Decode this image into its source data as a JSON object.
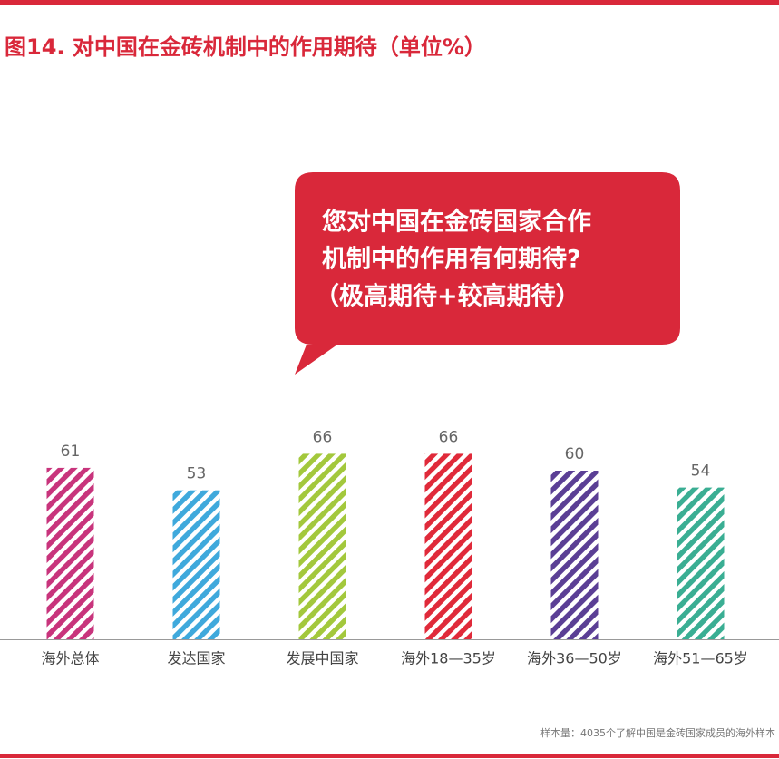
{
  "chart_data": {
    "type": "bar",
    "title": "图14. 对中国在金砖机制中的作用期待（单位%）",
    "annotation": [
      "您对中国在金砖国家合作",
      "机制中的作用有何期待?",
      "（极高期待+较高期待）"
    ],
    "categories": [
      "海外总体",
      "发达国家",
      "发展中国家",
      "海外18—35岁",
      "海外36—50岁",
      "海外51—65岁"
    ],
    "values": [
      61,
      53,
      66,
      66,
      60,
      54
    ],
    "colors": [
      "#c8347c",
      "#3fa9dc",
      "#a3c83c",
      "#e02a3a",
      "#5b3f95",
      "#3aae93"
    ],
    "note": "样本量：4035个了解中国是金砖国家成员的海外样本"
  }
}
